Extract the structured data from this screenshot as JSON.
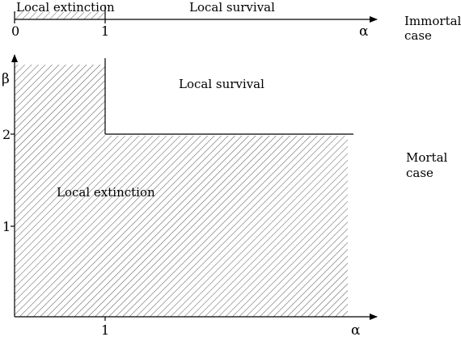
{
  "immortal": {
    "region_left_label": "Local extinction",
    "region_right_label": "Local survival",
    "tick_zero": "0",
    "tick_one": "1",
    "axis_label": "α",
    "case_line1": "Immortal",
    "case_line2": "case"
  },
  "mortal": {
    "region_survival_label": "Local survival",
    "region_extinction_label": "Local extinction",
    "y_tick_two": "2",
    "y_tick_one": "1",
    "x_tick_one": "1",
    "y_axis_label": "β",
    "x_axis_label": "α",
    "case_line1": "Mortal",
    "case_line2": "case"
  }
}
